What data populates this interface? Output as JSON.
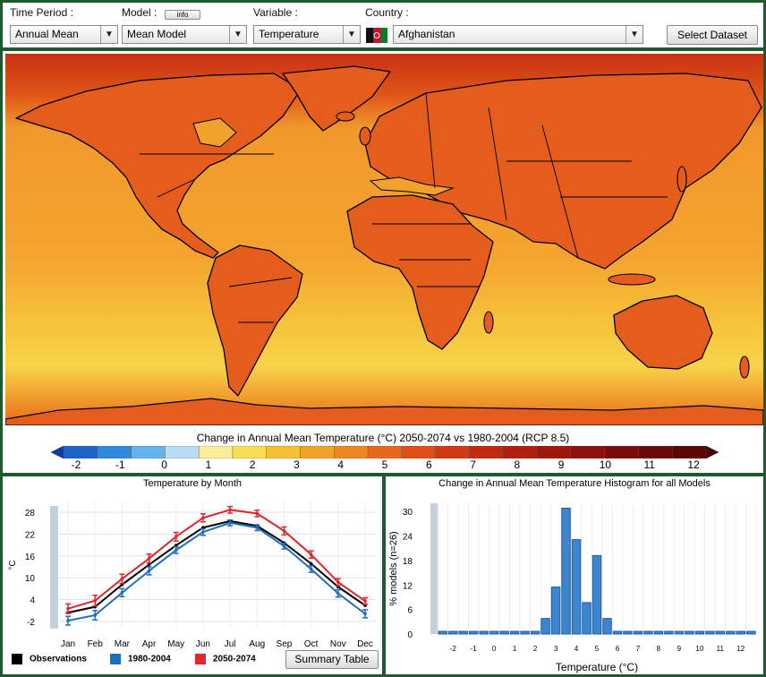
{
  "controls": {
    "time_period_label": "Time Period :",
    "time_period_value": "Annual Mean",
    "model_label": "Model :",
    "model_info_label": "info",
    "model_value": "Mean Model",
    "variable_label": "Variable :",
    "variable_value": "Temperature",
    "country_label": "Country :",
    "country_value": "Afghanistan",
    "select_dataset_label": "Select Dataset"
  },
  "map": {
    "legend_title": "Change in Annual Mean Temperature (°C) 2050-2074 vs 1980-2004 (RCP 8.5)",
    "colorbar_ticks": [
      "-2",
      "-1",
      "0",
      "1",
      "2",
      "3",
      "4",
      "5",
      "6",
      "7",
      "8",
      "9",
      "10",
      "11",
      "12"
    ],
    "colorbar_colors": [
      "#0d3ea8",
      "#1b62cc",
      "#2e8ae0",
      "#63b3ee",
      "#b9dcf5",
      "#fbee99",
      "#f8dc55",
      "#f5c033",
      "#f2a42a",
      "#ee8622",
      "#e9691c",
      "#e04e16",
      "#d23a12",
      "#c22a10",
      "#b01e0e",
      "#9e160c",
      "#8c100b",
      "#7c0b09",
      "#6c0808",
      "#5c0606",
      "#4c0404"
    ],
    "region_colors": {
      "arctic": "#c83214",
      "high_lat": "#df5518",
      "land_hot": "#e3601c",
      "ocean_mid": "#f1992c",
      "ocean_tropic": "#f4a42e",
      "ocean_south": "#f6c23a",
      "southern_band": "#f8d448",
      "antarctic": "#e46a1e"
    }
  },
  "monthly": {
    "title": "Temperature by Month",
    "ylabel": "°C",
    "legend": [
      {
        "label": "Observations",
        "color": "#000000"
      },
      {
        "label": "1980-2004",
        "color": "#1f6fc0"
      },
      {
        "label": "2050-2074",
        "color": "#e0262e"
      }
    ],
    "summary_button": "Summary Table"
  },
  "histogram": {
    "title": "Change in Annual Mean Temperature Histogram for all Models",
    "ylabel": "% models (n=26)",
    "xlabel": "Temperature (°C)"
  },
  "chart_data": [
    {
      "type": "line",
      "title": "Temperature by Month",
      "ylabel": "°C",
      "categories": [
        "Jan",
        "Feb",
        "Mar",
        "Apr",
        "May",
        "Jun",
        "Jul",
        "Aug",
        "Sep",
        "Oct",
        "Nov",
        "Dec"
      ],
      "yticks": [
        -2,
        4,
        10,
        16,
        22,
        28
      ],
      "ylim": [
        -4,
        31
      ],
      "series": [
        {
          "name": "Observations",
          "color": "#000000",
          "values": [
            0.4,
            2.0,
            8.1,
            13.6,
            18.9,
            23.8,
            25.6,
            24.3,
            19.6,
            13.9,
            7.5,
            2.4
          ],
          "errors": [
            0,
            0,
            0,
            0,
            0,
            0,
            0,
            0,
            0,
            0,
            0,
            0
          ]
        },
        {
          "name": "1980-2004",
          "color": "#1f6fc0",
          "values": [
            -1.8,
            -0.3,
            5.9,
            11.9,
            17.6,
            22.6,
            25.1,
            23.8,
            18.7,
            12.4,
            5.7,
            0.1
          ],
          "errors": [
            1.2,
            1.3,
            1.1,
            1.1,
            0.9,
            0.9,
            0.8,
            0.8,
            0.8,
            0.9,
            1.0,
            1.1
          ]
        },
        {
          "name": "2050-2074",
          "color": "#e0262e",
          "values": [
            1.5,
            3.7,
            9.7,
            15.3,
            21.3,
            26.5,
            28.7,
            27.7,
            22.9,
            16.4,
            8.8,
            3.6
          ],
          "errors": [
            1.3,
            1.5,
            1.3,
            1.2,
            1.2,
            1.1,
            0.9,
            0.9,
            1.1,
            1.0,
            1.0,
            0.9
          ]
        }
      ]
    },
    {
      "type": "bar",
      "title": "Change in Annual Mean Temperature Histogram for all Models",
      "xlabel": "Temperature (°C)",
      "ylabel": "% models (n=26)",
      "categories": [
        "-2.5",
        "-2",
        "-1.5",
        "-1",
        "-0.5",
        "0",
        "0.5",
        "1",
        "1.5",
        "2",
        "2.5",
        "3",
        "3.5",
        "4",
        "4.5",
        "5",
        "5.5",
        "6",
        "6.5",
        "7",
        "7.5",
        "8",
        "8.5",
        "9",
        "9.5",
        "10",
        "10.5",
        "11",
        "11.5",
        "12",
        "12.5"
      ],
      "values": [
        0,
        0,
        0,
        0,
        0,
        0,
        0,
        0,
        0,
        0,
        3.8,
        11.5,
        30.8,
        23.1,
        7.7,
        19.2,
        3.8,
        0,
        0,
        0,
        0,
        0,
        0,
        0,
        0,
        0,
        0,
        0,
        0,
        0,
        0
      ],
      "xticks": [
        "-2",
        "-1",
        "0",
        "1",
        "2",
        "3",
        "4",
        "5",
        "6",
        "7",
        "8",
        "9",
        "10",
        "11",
        "12"
      ],
      "yticks": [
        0,
        6,
        12,
        18,
        24,
        30
      ],
      "ylim": [
        0,
        32
      ]
    }
  ]
}
